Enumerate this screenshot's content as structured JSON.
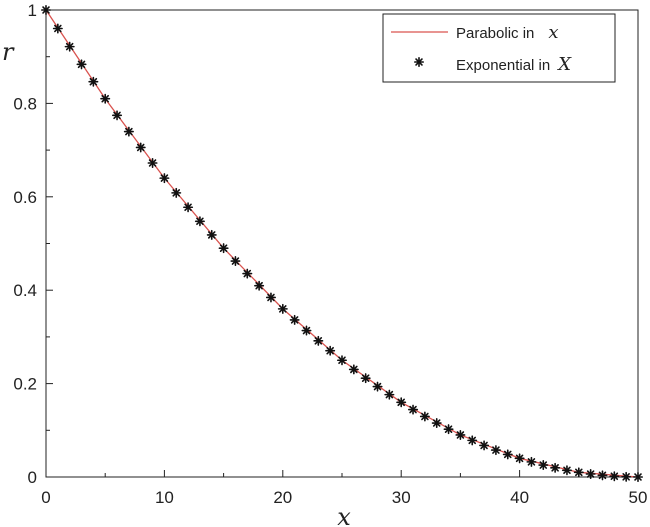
{
  "chart_data": {
    "type": "line",
    "title": "",
    "xlabel": "x",
    "ylabel": "r",
    "xlim": [
      0,
      50
    ],
    "ylim": [
      0,
      1
    ],
    "xticks": [
      0,
      10,
      20,
      30,
      40,
      50
    ],
    "yticks": [
      0,
      0.2,
      0.4,
      0.6,
      0.8,
      1
    ],
    "xtick_labels": [
      "0",
      "10",
      "20",
      "30",
      "40",
      "50"
    ],
    "ytick_labels": [
      "0",
      "0.2",
      "0.4",
      "0.6",
      "0.8",
      "1"
    ],
    "grid": false,
    "legend_position": "top-right",
    "series": [
      {
        "name_text": "Parabolic in",
        "name_math": "x",
        "style": "line",
        "color": "#d9534f",
        "x": [
          0,
          5,
          10,
          15,
          20,
          25,
          30,
          35,
          40,
          45,
          50
        ],
        "y": [
          1,
          0.81,
          0.64,
          0.49,
          0.36,
          0.25,
          0.16,
          0.09,
          0.04,
          0.01,
          0
        ]
      },
      {
        "name_text": "Exponential in",
        "name_math": "X",
        "style": "markers",
        "marker": "asterisk",
        "color": "#111111",
        "x": [
          0,
          1,
          2,
          3,
          4,
          5,
          6,
          7,
          8,
          9,
          10,
          11,
          12,
          13,
          14,
          15,
          16,
          17,
          18,
          19,
          20,
          21,
          22,
          23,
          24,
          25,
          26,
          27,
          28,
          29,
          30,
          31,
          32,
          33,
          34,
          35,
          36,
          37,
          38,
          39,
          40,
          41,
          42,
          43,
          44,
          45,
          46,
          47,
          48,
          49,
          50
        ],
        "y": [
          1,
          0.9604,
          0.9216,
          0.8836,
          0.8464,
          0.81,
          0.7744,
          0.7396,
          0.7056,
          0.6724,
          0.64,
          0.6084,
          0.5776,
          0.5476,
          0.5184,
          0.49,
          0.4624,
          0.4356,
          0.4096,
          0.3844,
          0.36,
          0.3364,
          0.3136,
          0.2916,
          0.2704,
          0.25,
          0.2304,
          0.2116,
          0.1936,
          0.1764,
          0.16,
          0.1444,
          0.1296,
          0.1156,
          0.1024,
          0.09,
          0.0784,
          0.0676,
          0.0576,
          0.0484,
          0.04,
          0.0324,
          0.0256,
          0.0196,
          0.0144,
          0.01,
          0.0064,
          0.0036,
          0.0016,
          0.0004,
          0
        ]
      }
    ]
  }
}
